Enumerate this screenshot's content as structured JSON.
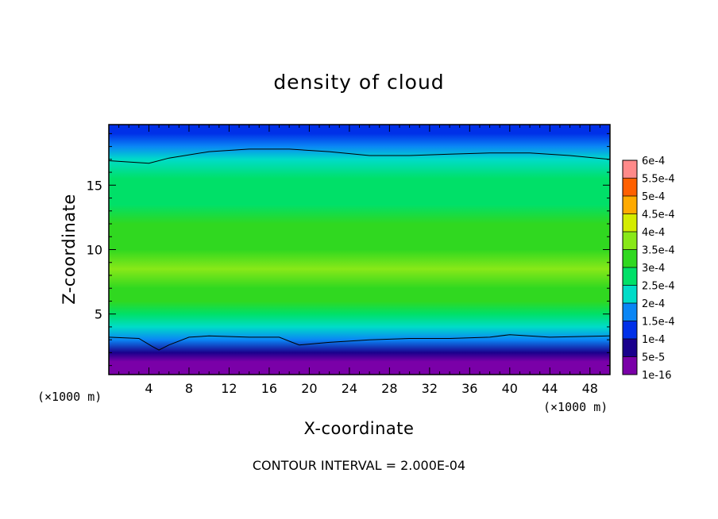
{
  "chart_data": {
    "type": "heatmap",
    "title": "density of cloud",
    "xlabel": "X-coordinate",
    "ylabel": "Z-coordinate",
    "x_unit": "(×1000 m)",
    "z_unit": "(×1000 m)",
    "xlim": [
      0,
      50
    ],
    "ylim": [
      0.3,
      19.7
    ],
    "x_ticks": [
      4,
      8,
      12,
      16,
      20,
      24,
      28,
      32,
      36,
      40,
      44,
      48
    ],
    "x_tick_labels": [
      "4",
      "8",
      "12",
      "16",
      "20",
      "24",
      "28",
      "32",
      "36",
      "40",
      "44",
      "48"
    ],
    "y_ticks": [
      5,
      10,
      15
    ],
    "y_tick_labels": [
      "5",
      "10",
      "15"
    ],
    "colorbar": {
      "labels": [
        "1e-16",
        "5e-5",
        "1e-4",
        "1.5e-4",
        "2e-4",
        "2.5e-4",
        "3e-4",
        "3.5e-4",
        "4e-4",
        "4.5e-4",
        "5e-4",
        "5.5e-4",
        "6e-4"
      ],
      "values": [
        0,
        5e-05,
        0.0001,
        0.00015,
        0.0002,
        0.00025,
        0.0003,
        0.00035,
        0.0004,
        0.00045,
        0.0005,
        0.00055,
        0.0006
      ],
      "colors": [
        "#7a00a8",
        "#1a008c",
        "#0030e8",
        "#0a86f5",
        "#00dcc8",
        "#00e068",
        "#30d820",
        "#88e818",
        "#d4ec00",
        "#ffaa00",
        "#ff6000",
        "#ff2020",
        "#ff8a8a"
      ]
    },
    "contour_interval_text": "CONTOUR INTERVAL = 2.000E-04",
    "contour_interval": 0.0002,
    "field_profile_by_z": [
      {
        "z": 0.3,
        "value": 0.0
      },
      {
        "z": 0.8,
        "value": 1e-05
      },
      {
        "z": 1.3,
        "value": 4e-05
      },
      {
        "z": 2.0,
        "value": 9e-05
      },
      {
        "z": 3.0,
        "value": 0.00018
      },
      {
        "z": 4.0,
        "value": 0.00024
      },
      {
        "z": 5.0,
        "value": 0.00027
      },
      {
        "z": 6.0,
        "value": 0.0003
      },
      {
        "z": 7.0,
        "value": 0.00033
      },
      {
        "z": 8.5,
        "value": 0.00035
      },
      {
        "z": 10.0,
        "value": 0.00034
      },
      {
        "z": 12.0,
        "value": 0.00031
      },
      {
        "z": 13.5,
        "value": 0.00029
      },
      {
        "z": 15.5,
        "value": 0.00025
      },
      {
        "z": 17.0,
        "value": 0.0002
      },
      {
        "z": 18.0,
        "value": 0.00016
      },
      {
        "z": 19.0,
        "value": 0.00012
      },
      {
        "z": 19.7,
        "value": 0.0001
      }
    ],
    "contour_lines": [
      {
        "level": 0.0002,
        "points": [
          [
            0,
            16.9
          ],
          [
            2,
            16.8
          ],
          [
            4,
            16.7
          ],
          [
            6,
            17.1
          ],
          [
            10,
            17.6
          ],
          [
            14,
            17.8
          ],
          [
            18,
            17.8
          ],
          [
            22,
            17.6
          ],
          [
            26,
            17.3
          ],
          [
            30,
            17.3
          ],
          [
            34,
            17.4
          ],
          [
            38,
            17.5
          ],
          [
            42,
            17.5
          ],
          [
            46,
            17.3
          ],
          [
            50,
            17.0
          ]
        ]
      },
      {
        "level": 0.0002,
        "points": [
          [
            0,
            3.2
          ],
          [
            3,
            3.1
          ],
          [
            4.3,
            2.5
          ],
          [
            5,
            2.2
          ],
          [
            6,
            2.6
          ],
          [
            8,
            3.2
          ],
          [
            10,
            3.3
          ],
          [
            14,
            3.2
          ],
          [
            17,
            3.2
          ],
          [
            18.3,
            2.8
          ],
          [
            19,
            2.6
          ],
          [
            22,
            2.8
          ],
          [
            26,
            3.0
          ],
          [
            30,
            3.1
          ],
          [
            34,
            3.1
          ],
          [
            38,
            3.2
          ],
          [
            40,
            3.4
          ],
          [
            44,
            3.2
          ],
          [
            50,
            3.3
          ]
        ]
      }
    ]
  }
}
